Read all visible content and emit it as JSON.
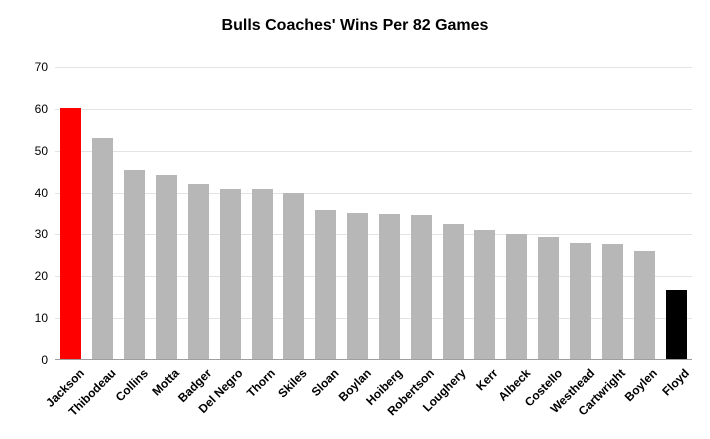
{
  "chart_data": {
    "type": "bar",
    "title": "Bulls Coaches' Wins Per 82 Games",
    "categories": [
      "Jackson",
      "Thibodeau",
      "Collins",
      "Motta",
      "Badger",
      "Del Negro",
      "Thorn",
      "Skiles",
      "Sloan",
      "Boylan",
      "Hoiberg",
      "Robertson",
      "Loughery",
      "Kerr",
      "Albeck",
      "Costello",
      "Westhead",
      "Cartwright",
      "Boylen",
      "Floyd"
    ],
    "values": [
      60.3,
      53.0,
      45.4,
      44.1,
      42.0,
      40.9,
      40.8,
      39.9,
      35.8,
      35.1,
      34.9,
      34.6,
      32.4,
      31.0,
      30.0,
      29.4,
      28.0,
      27.8,
      26.1,
      16.8
    ],
    "bar_colors": [
      "#ff0000",
      "#b7b7b7",
      "#b7b7b7",
      "#b7b7b7",
      "#b7b7b7",
      "#b7b7b7",
      "#b7b7b7",
      "#b7b7b7",
      "#b7b7b7",
      "#b7b7b7",
      "#b7b7b7",
      "#b7b7b7",
      "#b7b7b7",
      "#b7b7b7",
      "#b7b7b7",
      "#b7b7b7",
      "#b7b7b7",
      "#b7b7b7",
      "#b7b7b7",
      "#000000"
    ],
    "default_bar_color": "#b7b7b7",
    "highlight_colors": {
      "Jackson": "#ff0000",
      "Floyd": "#000000"
    },
    "xlabel": "",
    "ylabel": "",
    "ylim": [
      0,
      70
    ],
    "yticks": [
      0,
      10,
      20,
      30,
      40,
      50,
      60,
      70
    ],
    "grid": true,
    "legend_position": "none",
    "background_color": "#ffffff",
    "gridline_color": "#e3e3e3",
    "baseline_color": "#9e9e9e"
  }
}
